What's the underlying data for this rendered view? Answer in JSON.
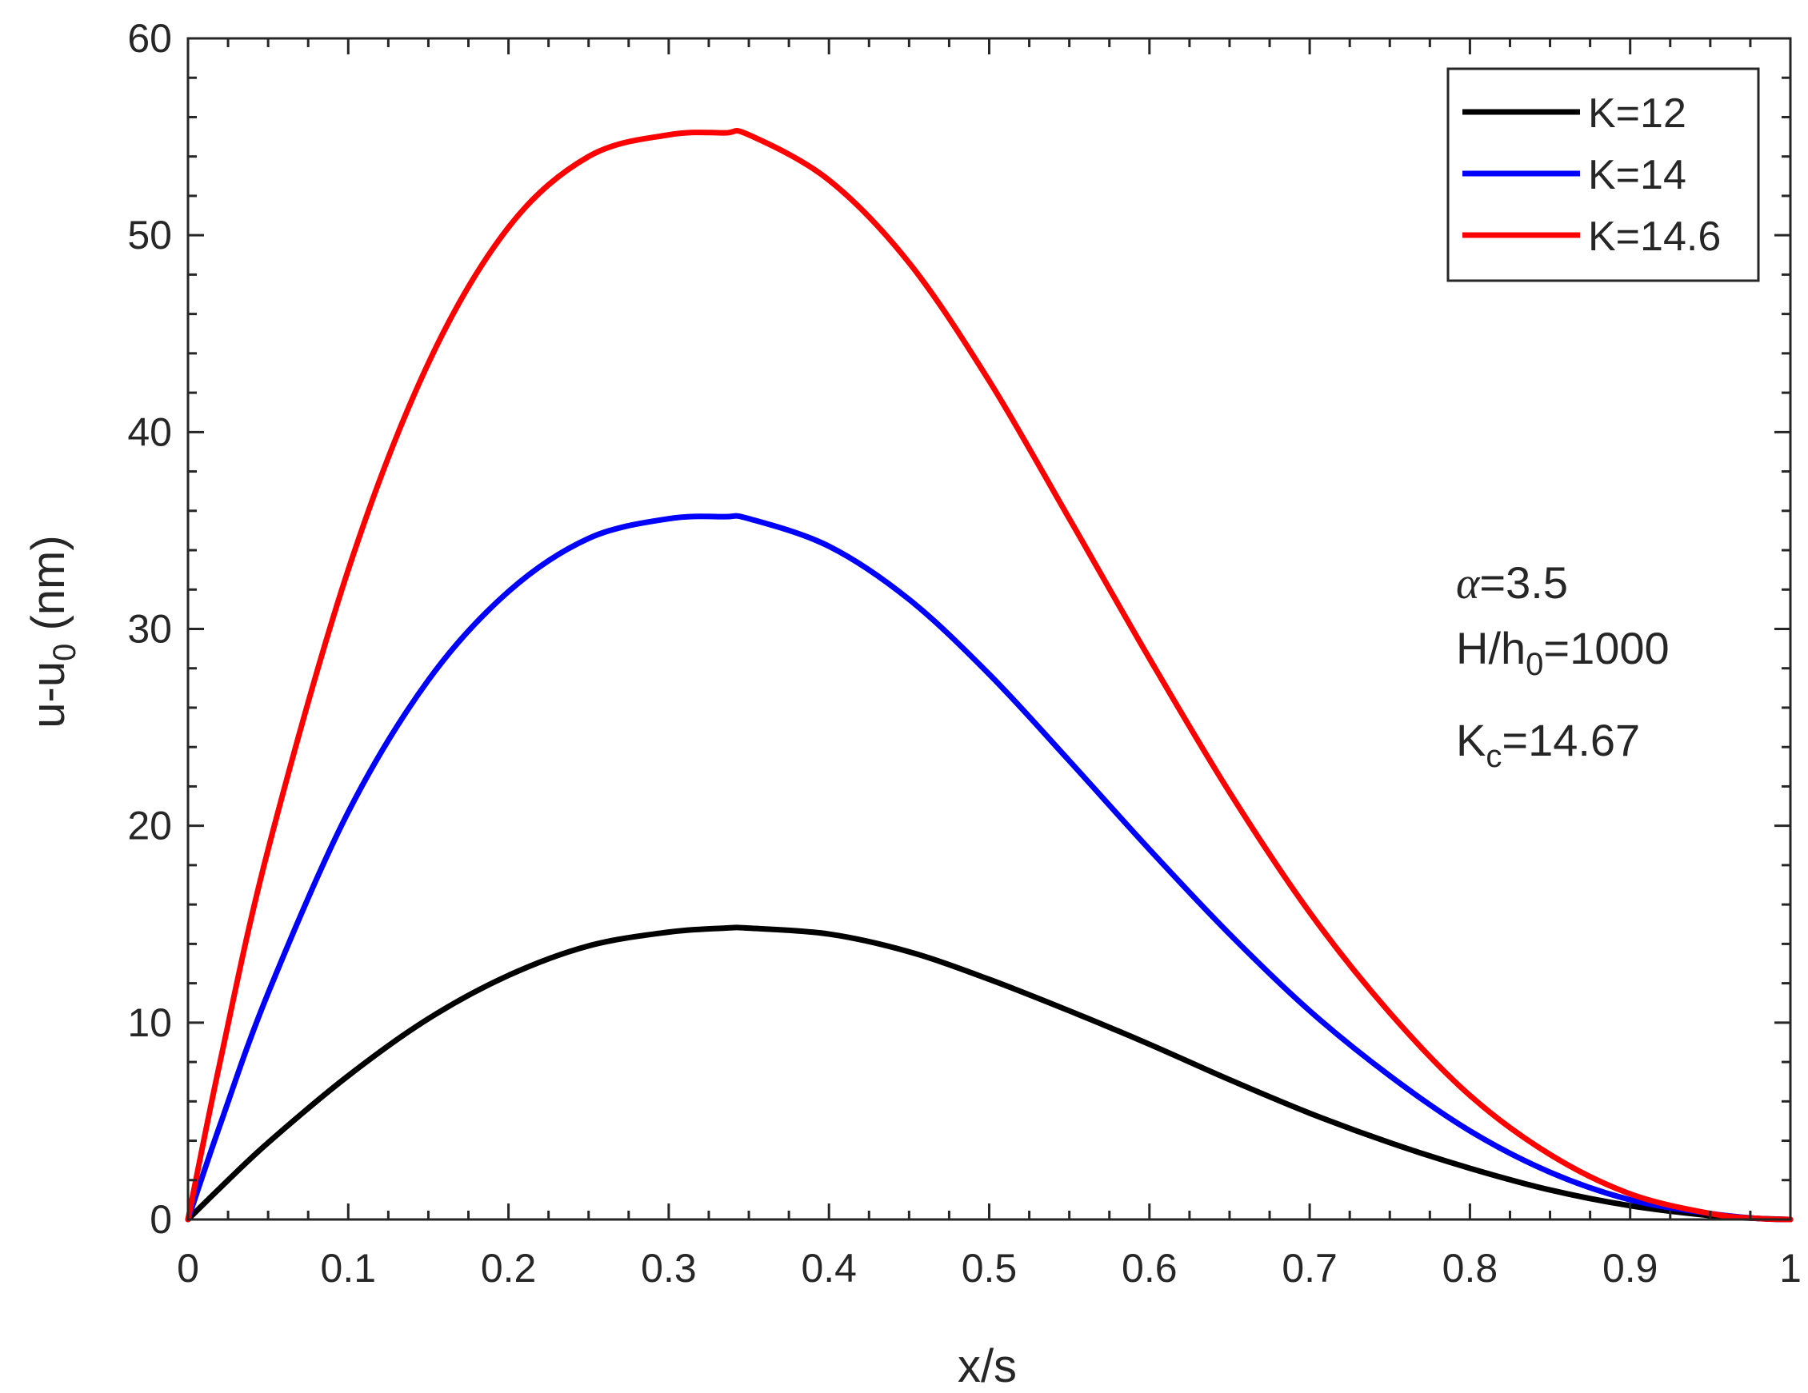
{
  "chart_data": {
    "type": "line",
    "title": "",
    "xlabel": "x/s",
    "ylabel": {
      "base": "u-u",
      "sub": "0",
      "unit": " (nm)"
    },
    "xlim": [
      0,
      1
    ],
    "ylim": [
      0,
      60
    ],
    "x_ticks": [
      0,
      0.1,
      0.2,
      0.3,
      0.4,
      0.5,
      0.6,
      0.7,
      0.8,
      0.9,
      1
    ],
    "x_tick_labels": [
      "0",
      "0.1",
      "0.2",
      "0.3",
      "0.4",
      "0.5",
      "0.6",
      "0.7",
      "0.8",
      "0.9",
      "1"
    ],
    "y_ticks": [
      0,
      10,
      20,
      30,
      40,
      50,
      60
    ],
    "y_tick_labels": [
      "0",
      "10",
      "20",
      "30",
      "40",
      "50",
      "60"
    ],
    "grid": false,
    "legend_position": "top-right",
    "x": [
      0,
      0.02,
      0.05,
      0.1,
      0.15,
      0.2,
      0.25,
      0.3,
      0.335,
      0.35,
      0.4,
      0.45,
      0.5,
      0.55,
      0.6,
      0.65,
      0.7,
      0.75,
      0.8,
      0.85,
      0.9,
      0.95,
      0.98,
      1
    ],
    "series": [
      {
        "name": "K=12",
        "color": "#000000",
        "values": [
          0,
          1.6,
          3.9,
          7.3,
          10.2,
          12.4,
          13.9,
          14.6,
          14.8,
          14.8,
          14.5,
          13.6,
          12.2,
          10.6,
          8.9,
          7.1,
          5.4,
          3.9,
          2.6,
          1.5,
          0.7,
          0.2,
          0.05,
          0
        ]
      },
      {
        "name": "K=14",
        "color": "#0000ff",
        "values": [
          0,
          4.8,
          11.5,
          20.7,
          27.4,
          31.9,
          34.6,
          35.6,
          35.7,
          35.6,
          34.2,
          31.5,
          27.7,
          23.3,
          18.8,
          14.5,
          10.6,
          7.3,
          4.5,
          2.4,
          1.0,
          0.3,
          0.05,
          0
        ]
      },
      {
        "name": "K=14.6",
        "color": "#ff0000",
        "values": [
          0,
          8.0,
          18.8,
          33.0,
          43.5,
          50.4,
          54.0,
          55.1,
          55.2,
          55.1,
          52.8,
          48.6,
          42.6,
          35.6,
          28.5,
          21.7,
          15.6,
          10.5,
          6.3,
          3.3,
          1.3,
          0.3,
          0.05,
          0
        ]
      }
    ],
    "annotations": {
      "alpha": {
        "symbol": "α",
        "text": "=3.5"
      },
      "ratio": {
        "base": "H/h",
        "sub": "0",
        "text": "=1000"
      },
      "kc": {
        "base": "K",
        "sub": "c",
        "text": "=14.67"
      }
    }
  }
}
